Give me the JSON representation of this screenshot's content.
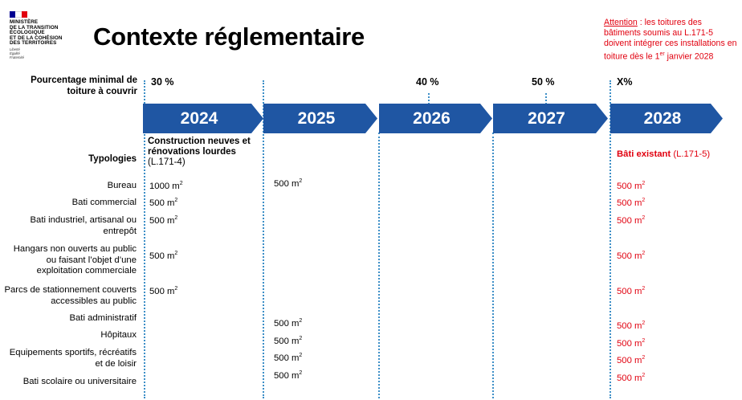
{
  "logo": {
    "lines": [
      "MINISTÈRE",
      "DE LA TRANSITION",
      "ÉCOLOGIQUE",
      "ET DE LA COHÉSION",
      "DES TERRITOIRES"
    ],
    "motto": [
      "Liberté",
      "Égalité",
      "Fraternité"
    ]
  },
  "title": "Contexte réglementaire",
  "attention": {
    "label": "Attention",
    "text_before_sup": " : les toitures des bâtiments soumis au L.171-5 doivent intégrer ces installations en toiture dès le 1",
    "sup": "er",
    "text_after_sup": " janvier 2028"
  },
  "percentage": {
    "label": "Pourcentage minimal de toiture à couvrir",
    "values": {
      "y2024": "30 %",
      "y2026": "40 %",
      "y2027": "50 %",
      "y2028": "X%"
    }
  },
  "years": [
    "2024",
    "2025",
    "2026",
    "2027",
    "2028"
  ],
  "typologies_label": "Typologies",
  "col2024_header": {
    "bold": "Construction neuves et rénovations lourdes",
    "ref": "(L.171-4)"
  },
  "col2028_header": {
    "bold": "Bâti existant",
    "ref": " (L.171-5)"
  },
  "unit_sup": "2",
  "rows": [
    {
      "label": "Bureau",
      "v2024": "1000 m",
      "v2025": "500 m",
      "v2028": "500 m"
    },
    {
      "label": "Bati commercial",
      "v2024": "500 m",
      "v2028": "500 m"
    },
    {
      "label": "Bati industriel, artisanal ou entrepôt",
      "v2024": "500 m",
      "v2028": "500 m"
    },
    {
      "label": "Hangars non ouverts au public ou faisant l’objet d’une exploitation commerciale",
      "v2024": "500 m",
      "v2028": "500 m"
    },
    {
      "label": "Parcs de stationnement couverts accessibles au public",
      "v2024": "500 m",
      "v2028": "500 m"
    },
    {
      "label": "Bati administratif",
      "v2025": "500 m",
      "v2028": "500 m"
    },
    {
      "label": "Hôpitaux",
      "v2025": "500 m",
      "v2028": "500 m"
    },
    {
      "label": "Equipements sportifs, récréatifs et de loisir",
      "v2025": "500 m",
      "v2028": "500 m"
    },
    {
      "label": "Bati scolaire ou universitaire",
      "v2025": "500 m",
      "v2028": "500 m"
    }
  ]
}
